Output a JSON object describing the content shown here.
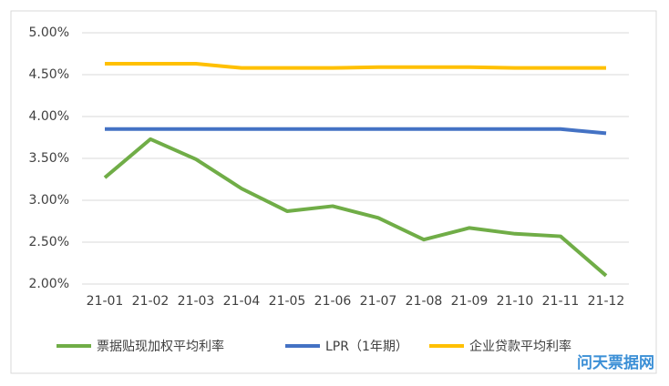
{
  "chart_data": {
    "type": "line",
    "categories": [
      "21-01",
      "21-02",
      "21-03",
      "21-04",
      "21-05",
      "21-06",
      "21-07",
      "21-08",
      "21-09",
      "21-10",
      "21-11",
      "21-12"
    ],
    "series": [
      {
        "name": "票据贴现加权平均利率",
        "color": "#70ad47",
        "values": [
          3.27,
          3.73,
          3.49,
          3.14,
          2.87,
          2.93,
          2.79,
          2.53,
          2.67,
          2.6,
          2.57,
          2.1
        ]
      },
      {
        "name": "LPR（1年期）",
        "color": "#4472c4",
        "values": [
          3.85,
          3.85,
          3.85,
          3.85,
          3.85,
          3.85,
          3.85,
          3.85,
          3.85,
          3.85,
          3.85,
          3.8
        ]
      },
      {
        "name": "企业贷款平均利率",
        "color": "#ffc000",
        "values": [
          4.63,
          4.63,
          4.63,
          4.58,
          4.58,
          4.58,
          4.59,
          4.59,
          4.59,
          4.58,
          4.58,
          4.58
        ]
      }
    ],
    "ylim": [
      2,
      5
    ],
    "yticks": [
      {
        "value": 2,
        "label": "2.00%"
      },
      {
        "value": 2.5,
        "label": "2.50%"
      },
      {
        "value": 3,
        "label": "3.00%"
      },
      {
        "value": 3.5,
        "label": "3.50%"
      },
      {
        "value": 4,
        "label": "4.00%"
      },
      {
        "value": 4.5,
        "label": "4.50%"
      },
      {
        "value": 5,
        "label": "5.00%"
      }
    ],
    "grid": true,
    "legend": "bottom",
    "watermark": "问天票据网"
  }
}
